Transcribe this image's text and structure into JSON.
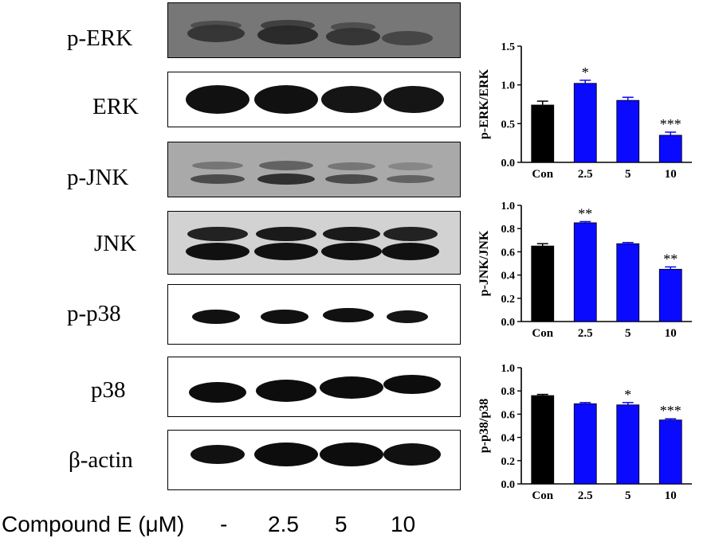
{
  "figure": {
    "blots": [
      {
        "label": "p-ERK",
        "bg": "#777777"
      },
      {
        "label": "ERK",
        "bg": "#ffffff"
      },
      {
        "label": "p-JNK",
        "bg": "#a9a9a9"
      },
      {
        "label": "JNK",
        "bg": "#d2d2d2"
      },
      {
        "label": "p-p38",
        "bg": "#ffffff"
      },
      {
        "label": "p38",
        "bg": "#ffffff"
      },
      {
        "label": "β-actin",
        "bg": "#ffffff"
      }
    ],
    "treatment_label": "Compound E (μM)",
    "lanes": [
      "-",
      "2.5",
      "5",
      "10"
    ]
  },
  "colors": {
    "control": "#000000",
    "treated": "#0a0aff"
  },
  "chart_data": [
    {
      "type": "bar",
      "ylabel": "p-ERK/ERK",
      "categories": [
        "Con",
        "2.5",
        "5",
        "10"
      ],
      "values": [
        0.74,
        1.02,
        0.8,
        0.35
      ],
      "errors": [
        0.05,
        0.04,
        0.04,
        0.04
      ],
      "significance": [
        "",
        "*",
        "",
        "***"
      ],
      "ylim": [
        0.0,
        1.5
      ],
      "yticks": [
        "0.0",
        "0.5",
        "1.0",
        "1.5"
      ]
    },
    {
      "type": "bar",
      "ylabel": "p-JNK/JNK",
      "categories": [
        "Con",
        "2.5",
        "5",
        "10"
      ],
      "values": [
        0.65,
        0.85,
        0.67,
        0.45
      ],
      "errors": [
        0.02,
        0.01,
        0.01,
        0.02
      ],
      "significance": [
        "",
        "**",
        "",
        "**"
      ],
      "ylim": [
        0.0,
        1.0
      ],
      "yticks": [
        "0.0",
        "0.2",
        "0.4",
        "0.6",
        "0.8",
        "1.0"
      ]
    },
    {
      "type": "bar",
      "ylabel": "p-p38/p38",
      "categories": [
        "Con",
        "2.5",
        "5",
        "10"
      ],
      "values": [
        0.76,
        0.69,
        0.68,
        0.55
      ],
      "errors": [
        0.01,
        0.01,
        0.02,
        0.01
      ],
      "significance": [
        "",
        "",
        "*",
        "***"
      ],
      "ylim": [
        0.0,
        1.0
      ],
      "yticks": [
        "0.0",
        "0.2",
        "0.4",
        "0.6",
        "0.8",
        "1.0"
      ]
    }
  ]
}
